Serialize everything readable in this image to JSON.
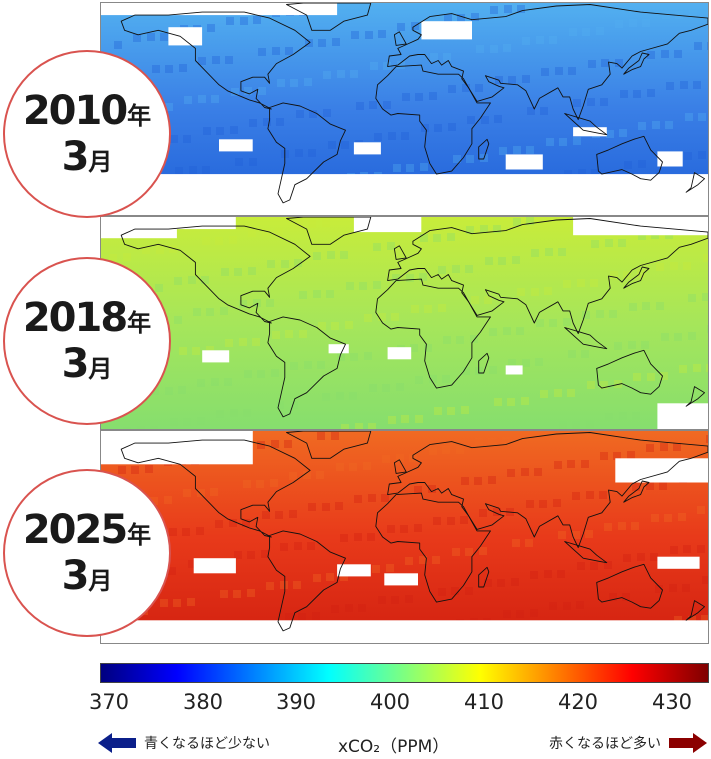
{
  "panels": [
    {
      "year": "2010",
      "year_unit": "年",
      "month": "3",
      "month_unit": "月",
      "level_ppm": 387,
      "colors": {
        "base": "#3a7fe6",
        "light": "#52b0f0",
        "dark": "#1f5fd8"
      }
    },
    {
      "year": "2018",
      "year_unit": "年",
      "month": "3",
      "month_unit": "月",
      "level_ppm": 407,
      "colors": {
        "base": "#a6e65a",
        "light": "#c8ec3a",
        "dark": "#86de6e"
      }
    },
    {
      "year": "2025",
      "year_unit": "年",
      "month": "3",
      "month_unit": "月",
      "level_ppm": 428,
      "colors": {
        "base": "#e83a1a",
        "light": "#f06a22",
        "dark": "#d22010"
      }
    }
  ],
  "colorbar": {
    "ticks": [
      "370",
      "380",
      "390",
      "400",
      "410",
      "420",
      "430"
    ],
    "min": 370,
    "max": 433,
    "colors": [
      "#00007f",
      "#0000ff",
      "#007fff",
      "#00ffff",
      "#7fff7f",
      "#ffff00",
      "#ff7f00",
      "#ff0000",
      "#7f0000"
    ]
  },
  "legend": {
    "low_label": "青くなるほど少ない",
    "unit_label": "xCO₂（PPM）",
    "high_label": "赤くなるほど多い",
    "low_arrow_color": "#0b1f8a",
    "high_arrow_color": "#8b0000"
  }
}
